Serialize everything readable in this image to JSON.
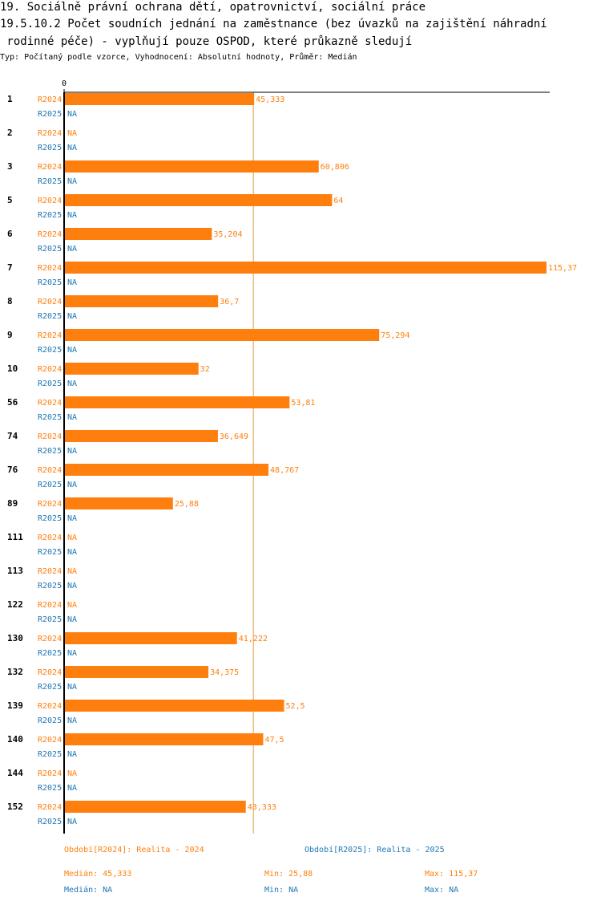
{
  "header": {
    "title_line1": "19. Sociálně právní ochrana dětí, opatrovnictví, sociální práce",
    "title_line2": "19.5.10.2 Počet soudních jednání na zaměstnance (bez úvazků na zajištění náhradní",
    "title_line3": " rodinné péče) - vyplňují pouze OSPOD, které průkazně sledují",
    "subtitle": "Typ: Počítaný podle vzorce, Vyhodnocení: Absolutní hodnoty, Průměr: Medián"
  },
  "colors": {
    "r2024": "#ff7f0e",
    "r2025": "#1f77b4",
    "axis": "#000000",
    "median_line": "#e69a3a"
  },
  "chart_data": {
    "type": "bar",
    "orientation": "horizontal",
    "axis_zero_label": "0",
    "categories": [
      "1",
      "2",
      "3",
      "5",
      "6",
      "7",
      "8",
      "9",
      "10",
      "56",
      "74",
      "76",
      "89",
      "111",
      "113",
      "122",
      "130",
      "132",
      "139",
      "140",
      "144",
      "152"
    ],
    "series": [
      {
        "name": "R2024",
        "values": [
          45.333,
          null,
          60.806,
          64,
          35.204,
          115.37,
          36.7,
          75.294,
          32,
          53.81,
          36.649,
          48.767,
          25.88,
          null,
          null,
          null,
          41.222,
          34.375,
          52.5,
          47.5,
          null,
          43.333
        ],
        "labels": [
          "45,333",
          "NA",
          "60,806",
          "64",
          "35,204",
          "115,37",
          "36,7",
          "75,294",
          "32",
          "53,81",
          "36,649",
          "48,767",
          "25,88",
          "NA",
          "NA",
          "NA",
          "41,222",
          "34,375",
          "52,5",
          "47,5",
          "NA",
          "43,333"
        ]
      },
      {
        "name": "R2025",
        "values": [
          null,
          null,
          null,
          null,
          null,
          null,
          null,
          null,
          null,
          null,
          null,
          null,
          null,
          null,
          null,
          null,
          null,
          null,
          null,
          null,
          null,
          null
        ],
        "labels": [
          "NA",
          "NA",
          "NA",
          "NA",
          "NA",
          "NA",
          "NA",
          "NA",
          "NA",
          "NA",
          "NA",
          "NA",
          "NA",
          "NA",
          "NA",
          "NA",
          "NA",
          "NA",
          "NA",
          "NA",
          "NA",
          "NA"
        ]
      }
    ],
    "xlim": [
      0,
      115.37
    ],
    "median_value": 45.333
  },
  "legend": {
    "r2024_period": "Období[R2024]: Realita - 2024",
    "r2025_period": "Období[R2025]: Realita - 2025",
    "r2024_median": "Medián: 45,333",
    "r2024_min": "Min: 25,88",
    "r2024_max": "Max: 115,37",
    "r2025_median": "Medián: NA",
    "r2025_min": "Min: NA",
    "r2025_max": "Max: NA"
  }
}
